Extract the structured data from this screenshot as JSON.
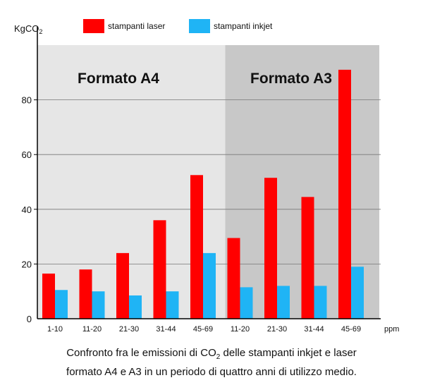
{
  "chart_data": {
    "type": "bar",
    "ylabel": "KgCO",
    "ylabel_sub": "2",
    "x_unit": "ppm",
    "ylim": [
      0,
      100
    ],
    "yticks": [
      0,
      20,
      40,
      60,
      80
    ],
    "grid": true,
    "legend_position": "top",
    "categories": [
      "1-10",
      "11-20",
      "21-30",
      "31-44",
      "45-69",
      "11-20",
      "21-30",
      "31-44",
      "45-69"
    ],
    "groups": [
      {
        "label": "Formato A4",
        "start": 0,
        "end": 4,
        "background": "#e6e6e6"
      },
      {
        "label": "Formato A3",
        "start": 5,
        "end": 8,
        "background": "#c8c8c8"
      }
    ],
    "series": [
      {
        "name": "stampanti laser",
        "color": "#ff0000",
        "values": [
          16.5,
          18,
          24,
          36,
          52.5,
          29.5,
          51.5,
          44.5,
          91
        ]
      },
      {
        "name": "stampanti inkjet",
        "color": "#1fb4f5",
        "values": [
          10.5,
          10,
          8.5,
          10,
          24,
          11.5,
          12,
          12,
          19
        ]
      }
    ]
  },
  "caption": {
    "line1_a": "Confronto fra le emissioni di CO",
    "line1_sub": "2",
    "line1_b": " delle stampanti inkjet e laser",
    "line2": "formato A4 e A3 in un periodo di quattro anni di utilizzo medio."
  }
}
